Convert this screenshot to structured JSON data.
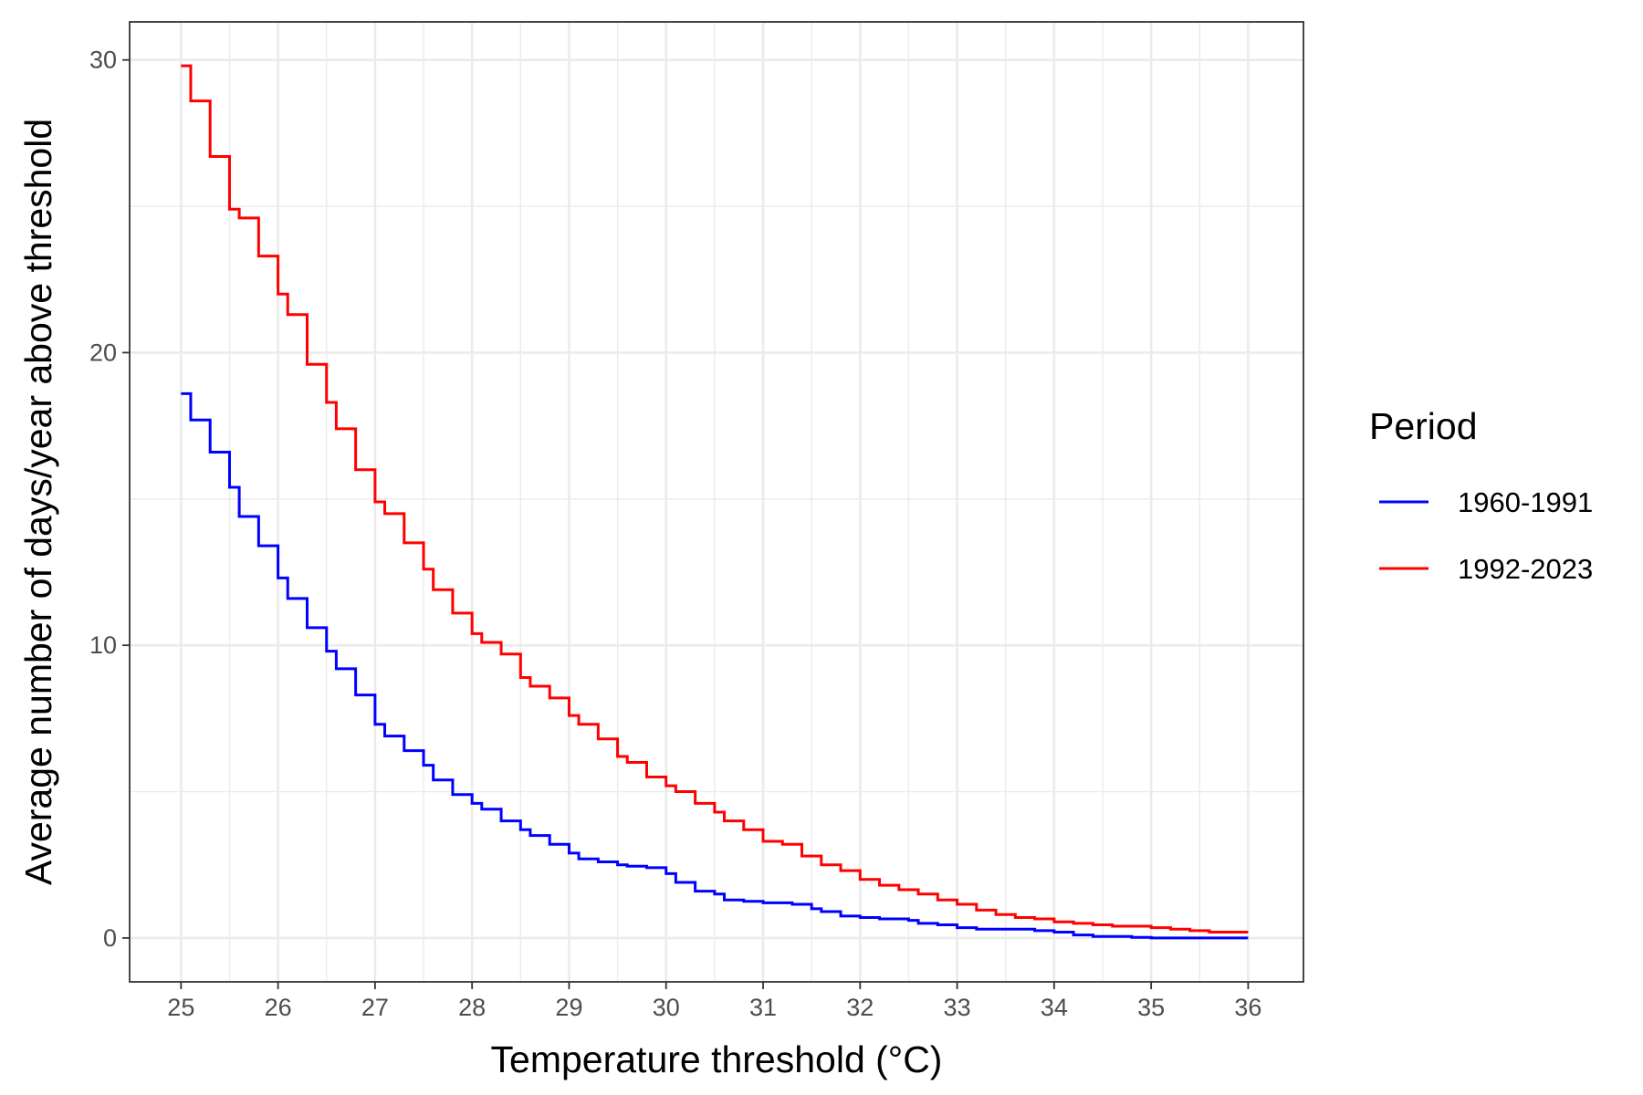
{
  "chart_data": {
    "type": "line",
    "step": true,
    "xlabel": "Temperature threshold (°C)",
    "ylabel": "Average number of days/year above threshold",
    "xlim": [
      24.47,
      36.57
    ],
    "ylim": [
      -1.5,
      31.3
    ],
    "xticks": [
      25,
      26,
      27,
      28,
      29,
      30,
      31,
      32,
      33,
      34,
      35,
      36
    ],
    "yticks": [
      0,
      10,
      20,
      30
    ],
    "grid": true,
    "legend": {
      "title": "Period",
      "position": "right"
    },
    "series": [
      {
        "name": "1960-1991",
        "color": "#0000ff",
        "x": [
          25.0,
          25.1,
          25.3,
          25.5,
          25.6,
          25.8,
          26.0,
          26.1,
          26.3,
          26.5,
          26.6,
          26.8,
          27.0,
          27.1,
          27.3,
          27.5,
          27.6,
          27.8,
          28.0,
          28.1,
          28.3,
          28.5,
          28.6,
          28.8,
          29.0,
          29.1,
          29.3,
          29.5,
          29.6,
          29.8,
          30.0,
          30.1,
          30.3,
          30.5,
          30.6,
          30.8,
          31.0,
          31.3,
          31.5,
          31.6,
          31.8,
          32.0,
          32.2,
          32.5,
          32.6,
          32.8,
          33.0,
          33.2,
          33.5,
          33.8,
          34.0,
          34.2,
          34.4,
          34.8,
          35.0,
          35.5,
          36.0
        ],
        "y": [
          18.6,
          17.7,
          16.6,
          15.4,
          14.4,
          13.4,
          12.3,
          11.6,
          10.6,
          9.8,
          9.2,
          8.3,
          7.3,
          6.9,
          6.4,
          5.9,
          5.4,
          4.9,
          4.6,
          4.4,
          4.0,
          3.7,
          3.5,
          3.2,
          2.9,
          2.7,
          2.6,
          2.5,
          2.45,
          2.4,
          2.2,
          1.9,
          1.6,
          1.5,
          1.3,
          1.25,
          1.2,
          1.15,
          1.0,
          0.9,
          0.75,
          0.7,
          0.65,
          0.6,
          0.5,
          0.45,
          0.35,
          0.3,
          0.3,
          0.25,
          0.2,
          0.1,
          0.05,
          0.02,
          0.0,
          0.0,
          0.0
        ]
      },
      {
        "name": "1992-2023",
        "color": "#ff0000",
        "x": [
          25.0,
          25.1,
          25.3,
          25.5,
          25.6,
          25.8,
          26.0,
          26.1,
          26.3,
          26.5,
          26.6,
          26.8,
          27.0,
          27.1,
          27.3,
          27.5,
          27.6,
          27.8,
          28.0,
          28.1,
          28.3,
          28.5,
          28.6,
          28.8,
          29.0,
          29.1,
          29.3,
          29.5,
          29.6,
          29.8,
          30.0,
          30.1,
          30.3,
          30.5,
          30.6,
          30.8,
          31.0,
          31.2,
          31.4,
          31.6,
          31.8,
          32.0,
          32.2,
          32.4,
          32.6,
          32.8,
          33.0,
          33.2,
          33.4,
          33.6,
          33.8,
          34.0,
          34.2,
          34.4,
          34.6,
          34.8,
          35.0,
          35.2,
          35.4,
          35.6,
          35.8,
          36.0
        ],
        "y": [
          29.8,
          28.6,
          26.7,
          24.9,
          24.6,
          23.3,
          22.0,
          21.3,
          19.6,
          18.3,
          17.4,
          16.0,
          14.9,
          14.5,
          13.5,
          12.6,
          11.9,
          11.1,
          10.4,
          10.1,
          9.7,
          8.9,
          8.6,
          8.2,
          7.6,
          7.3,
          6.8,
          6.2,
          6.0,
          5.5,
          5.2,
          5.0,
          4.6,
          4.3,
          4.0,
          3.7,
          3.3,
          3.2,
          2.8,
          2.5,
          2.3,
          2.0,
          1.8,
          1.65,
          1.5,
          1.3,
          1.15,
          0.95,
          0.8,
          0.7,
          0.65,
          0.55,
          0.5,
          0.45,
          0.4,
          0.4,
          0.35,
          0.3,
          0.25,
          0.2,
          0.2,
          0.2
        ]
      }
    ]
  }
}
